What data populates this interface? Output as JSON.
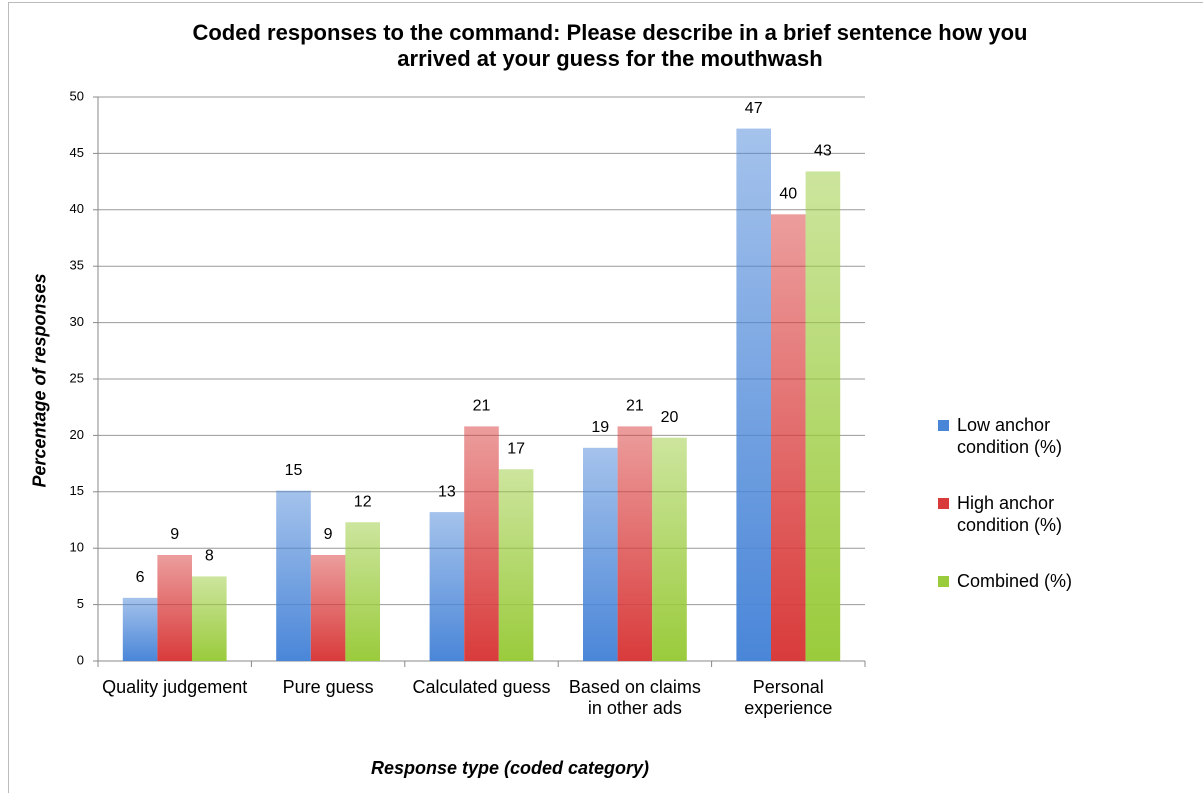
{
  "chart_data": {
    "type": "bar",
    "title": "Coded responses to the command: Please describe in a brief sentence how you arrived at your guess for the mouthwash",
    "x_label": "Response type (coded category)",
    "y_label": "Percentage of responses",
    "categories": [
      "Quality judgement",
      "Pure guess",
      "Calculated guess",
      "Based on claims in other ads",
      "Personal experience"
    ],
    "series": [
      {
        "name": "Low anchor condition (%)",
        "color": "#4a86d8",
        "values": [
          5.6,
          15.1,
          13.2,
          18.9,
          47.2
        ],
        "value_labels": [
          "6",
          "15",
          "13",
          "19",
          "47"
        ]
      },
      {
        "name": "High anchor condition (%)",
        "color": "#d93b3b",
        "values": [
          9.4,
          9.4,
          20.8,
          20.8,
          39.6
        ],
        "value_labels": [
          "9",
          "9",
          "21",
          "21",
          "40"
        ]
      },
      {
        "name": "Combined (%)",
        "color": "#9acb3c",
        "values": [
          7.5,
          12.3,
          17.0,
          19.8,
          43.4
        ],
        "value_labels": [
          "8",
          "12",
          "17",
          "20",
          "43"
        ]
      }
    ],
    "ylim": [
      0,
      50
    ],
    "yticks": [
      0,
      5,
      10,
      15,
      20,
      25,
      30,
      35,
      40,
      45,
      50
    ],
    "grid": true,
    "legend": "right"
  }
}
